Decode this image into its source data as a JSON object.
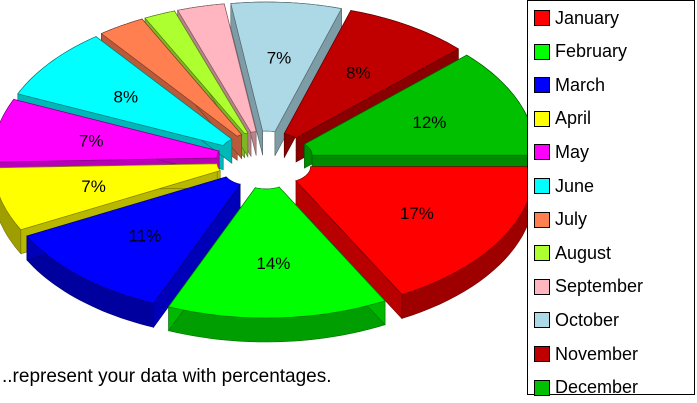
{
  "caption": "..represent your data with percentages.",
  "chart_data": {
    "type": "pie",
    "style": "3d-exploded",
    "legend_position": "right",
    "categories": [
      "January",
      "February",
      "March",
      "April",
      "May",
      "June",
      "July",
      "August",
      "September",
      "October",
      "November",
      "December"
    ],
    "values": [
      17,
      14,
      11,
      7,
      7,
      8,
      3,
      2,
      3,
      7,
      8,
      12
    ],
    "labels": [
      "17%",
      "14%",
      "11%",
      "7%",
      "7%",
      "8%",
      "",
      "",
      "",
      "7%",
      "8%",
      "12%"
    ],
    "colors": [
      "#ff0000",
      "#00ff00",
      "#0000ff",
      "#ffff00",
      "#ff00ff",
      "#00ffff",
      "#ff7f50",
      "#adff2f",
      "#ffb6c1",
      "#add8e6",
      "#c00000",
      "#00c000"
    ]
  }
}
